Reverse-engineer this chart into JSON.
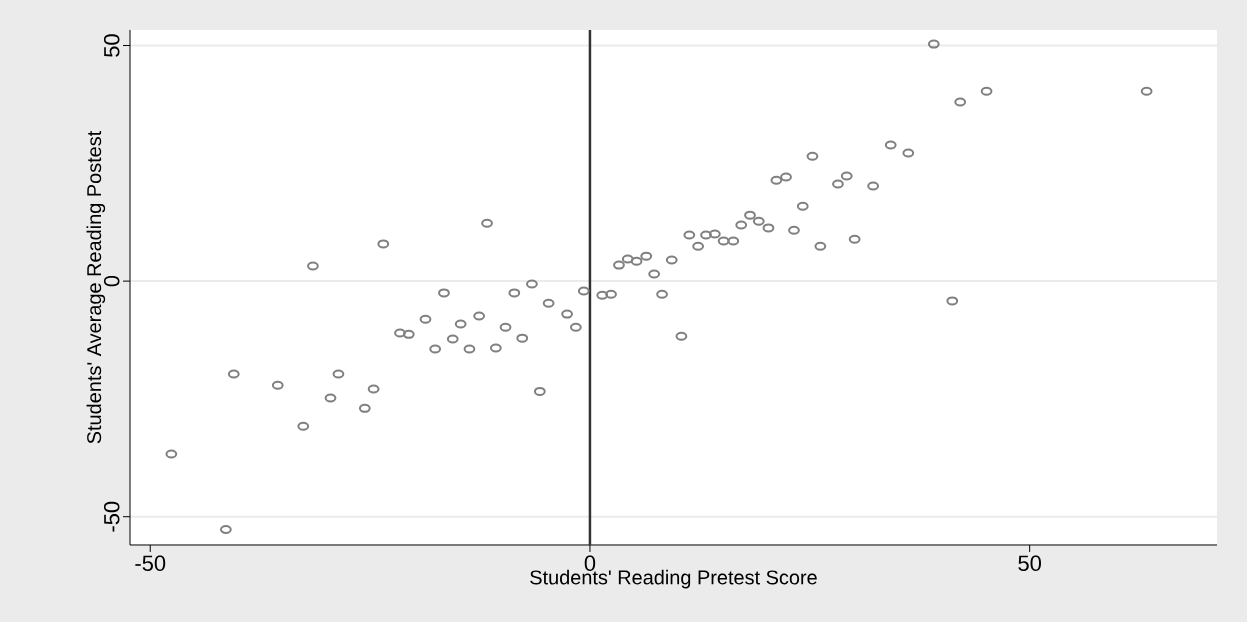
{
  "chart_data": {
    "type": "scatter",
    "xlabel": "Students' Reading Pretest Score",
    "ylabel": "Students' Average Reading Postest",
    "x": [
      -47.6,
      -41.4,
      -40.5,
      -35.5,
      -31.5,
      -32.6,
      -29.5,
      -28.6,
      -25.6,
      -24.6,
      -23.5,
      -21.6,
      -20.6,
      -18.7,
      -17.6,
      -16.6,
      -15.6,
      -14.7,
      -13.7,
      -12.6,
      -11.7,
      -10.7,
      -9.6,
      -8.6,
      -7.7,
      -6.6,
      -5.7,
      -4.7,
      -2.6,
      -1.6,
      -0.7,
      1.4,
      2.4,
      3.3,
      4.3,
      5.3,
      6.4,
      7.3,
      8.2,
      9.3,
      10.4,
      11.3,
      12.3,
      13.2,
      14.2,
      15.2,
      16.3,
      17.2,
      18.2,
      19.2,
      20.3,
      21.2,
      22.3,
      23.2,
      24.2,
      25.3,
      26.2,
      28.2,
      29.2,
      30.1,
      32.2,
      34.2,
      36.2,
      39.1,
      41.2,
      42.1,
      45.1,
      63.3
    ],
    "values": [
      -36.7,
      -52.7,
      -19.7,
      -22.1,
      3.2,
      -30.8,
      -24.8,
      -19.7,
      -27.0,
      -22.9,
      7.9,
      -11.0,
      -11.3,
      -8.1,
      -14.4,
      -2.5,
      -12.3,
      -9.1,
      -14.4,
      -7.4,
      12.3,
      -14.2,
      -9.8,
      -2.5,
      -12.1,
      -0.6,
      -23.4,
      -4.7,
      -7.0,
      -9.8,
      -2.1,
      -3.0,
      -2.8,
      3.4,
      4.7,
      4.2,
      5.3,
      1.5,
      -2.8,
      4.5,
      -11.7,
      9.8,
      7.4,
      9.8,
      10.0,
      8.5,
      8.5,
      11.9,
      14.0,
      12.7,
      11.3,
      21.4,
      22.1,
      10.8,
      15.9,
      26.5,
      7.4,
      20.6,
      22.3,
      8.9,
      20.2,
      28.9,
      27.2,
      50.3,
      -4.2,
      38.0,
      40.3,
      40.3
    ],
    "color": "#808080",
    "marker": "circle",
    "xlim": [
      -52.3,
      71.3
    ],
    "ylim": [
      -56,
      53.3
    ],
    "xticks": [
      -50,
      0,
      50
    ],
    "yticks": [
      -50,
      0,
      50
    ],
    "grid": "y",
    "ref_lines": [
      {
        "axis": "x",
        "value": 0,
        "color": "#333333"
      }
    ]
  }
}
